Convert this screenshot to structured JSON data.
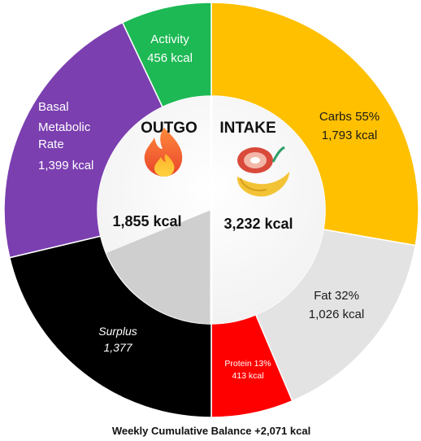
{
  "chart_data": {
    "type": "pie",
    "subtype": "split-donut",
    "footer": "Weekly Cumulative Balance +2,071 kcal",
    "outgo": {
      "heading": "OUTGO",
      "total_label": "1,855 kcal",
      "total": 1855,
      "icon": "fire-icon",
      "slices": [
        {
          "name": "Activity",
          "value": 456,
          "value_label": "456 kcal",
          "color": "#1db954"
        },
        {
          "name": "Basal Metabolic Rate",
          "name_lines": [
            "Basal",
            "Metabolic",
            "Rate"
          ],
          "value": 1399,
          "value_label": "1,399 kcal",
          "color": "#7b3fb0"
        },
        {
          "name": "Surplus",
          "value": 1377,
          "value_label": "1,377",
          "color": "#000000"
        }
      ]
    },
    "intake": {
      "heading": "INTAKE",
      "total_label": "3,232 kcal",
      "total": 3232,
      "icon": "meat-banana-icon",
      "slices": [
        {
          "name": "Carbs 55%",
          "value": 1793,
          "value_label": "1,793 kcal",
          "color": "#ffc000"
        },
        {
          "name": "Fat 32%",
          "value": 1026,
          "value_label": "1,026 kcal",
          "color": "#e3e3e3"
        },
        {
          "name": "Protein 13%",
          "value": 413,
          "value_label": "413 kcal",
          "color": "#ff0000"
        }
      ]
    }
  }
}
